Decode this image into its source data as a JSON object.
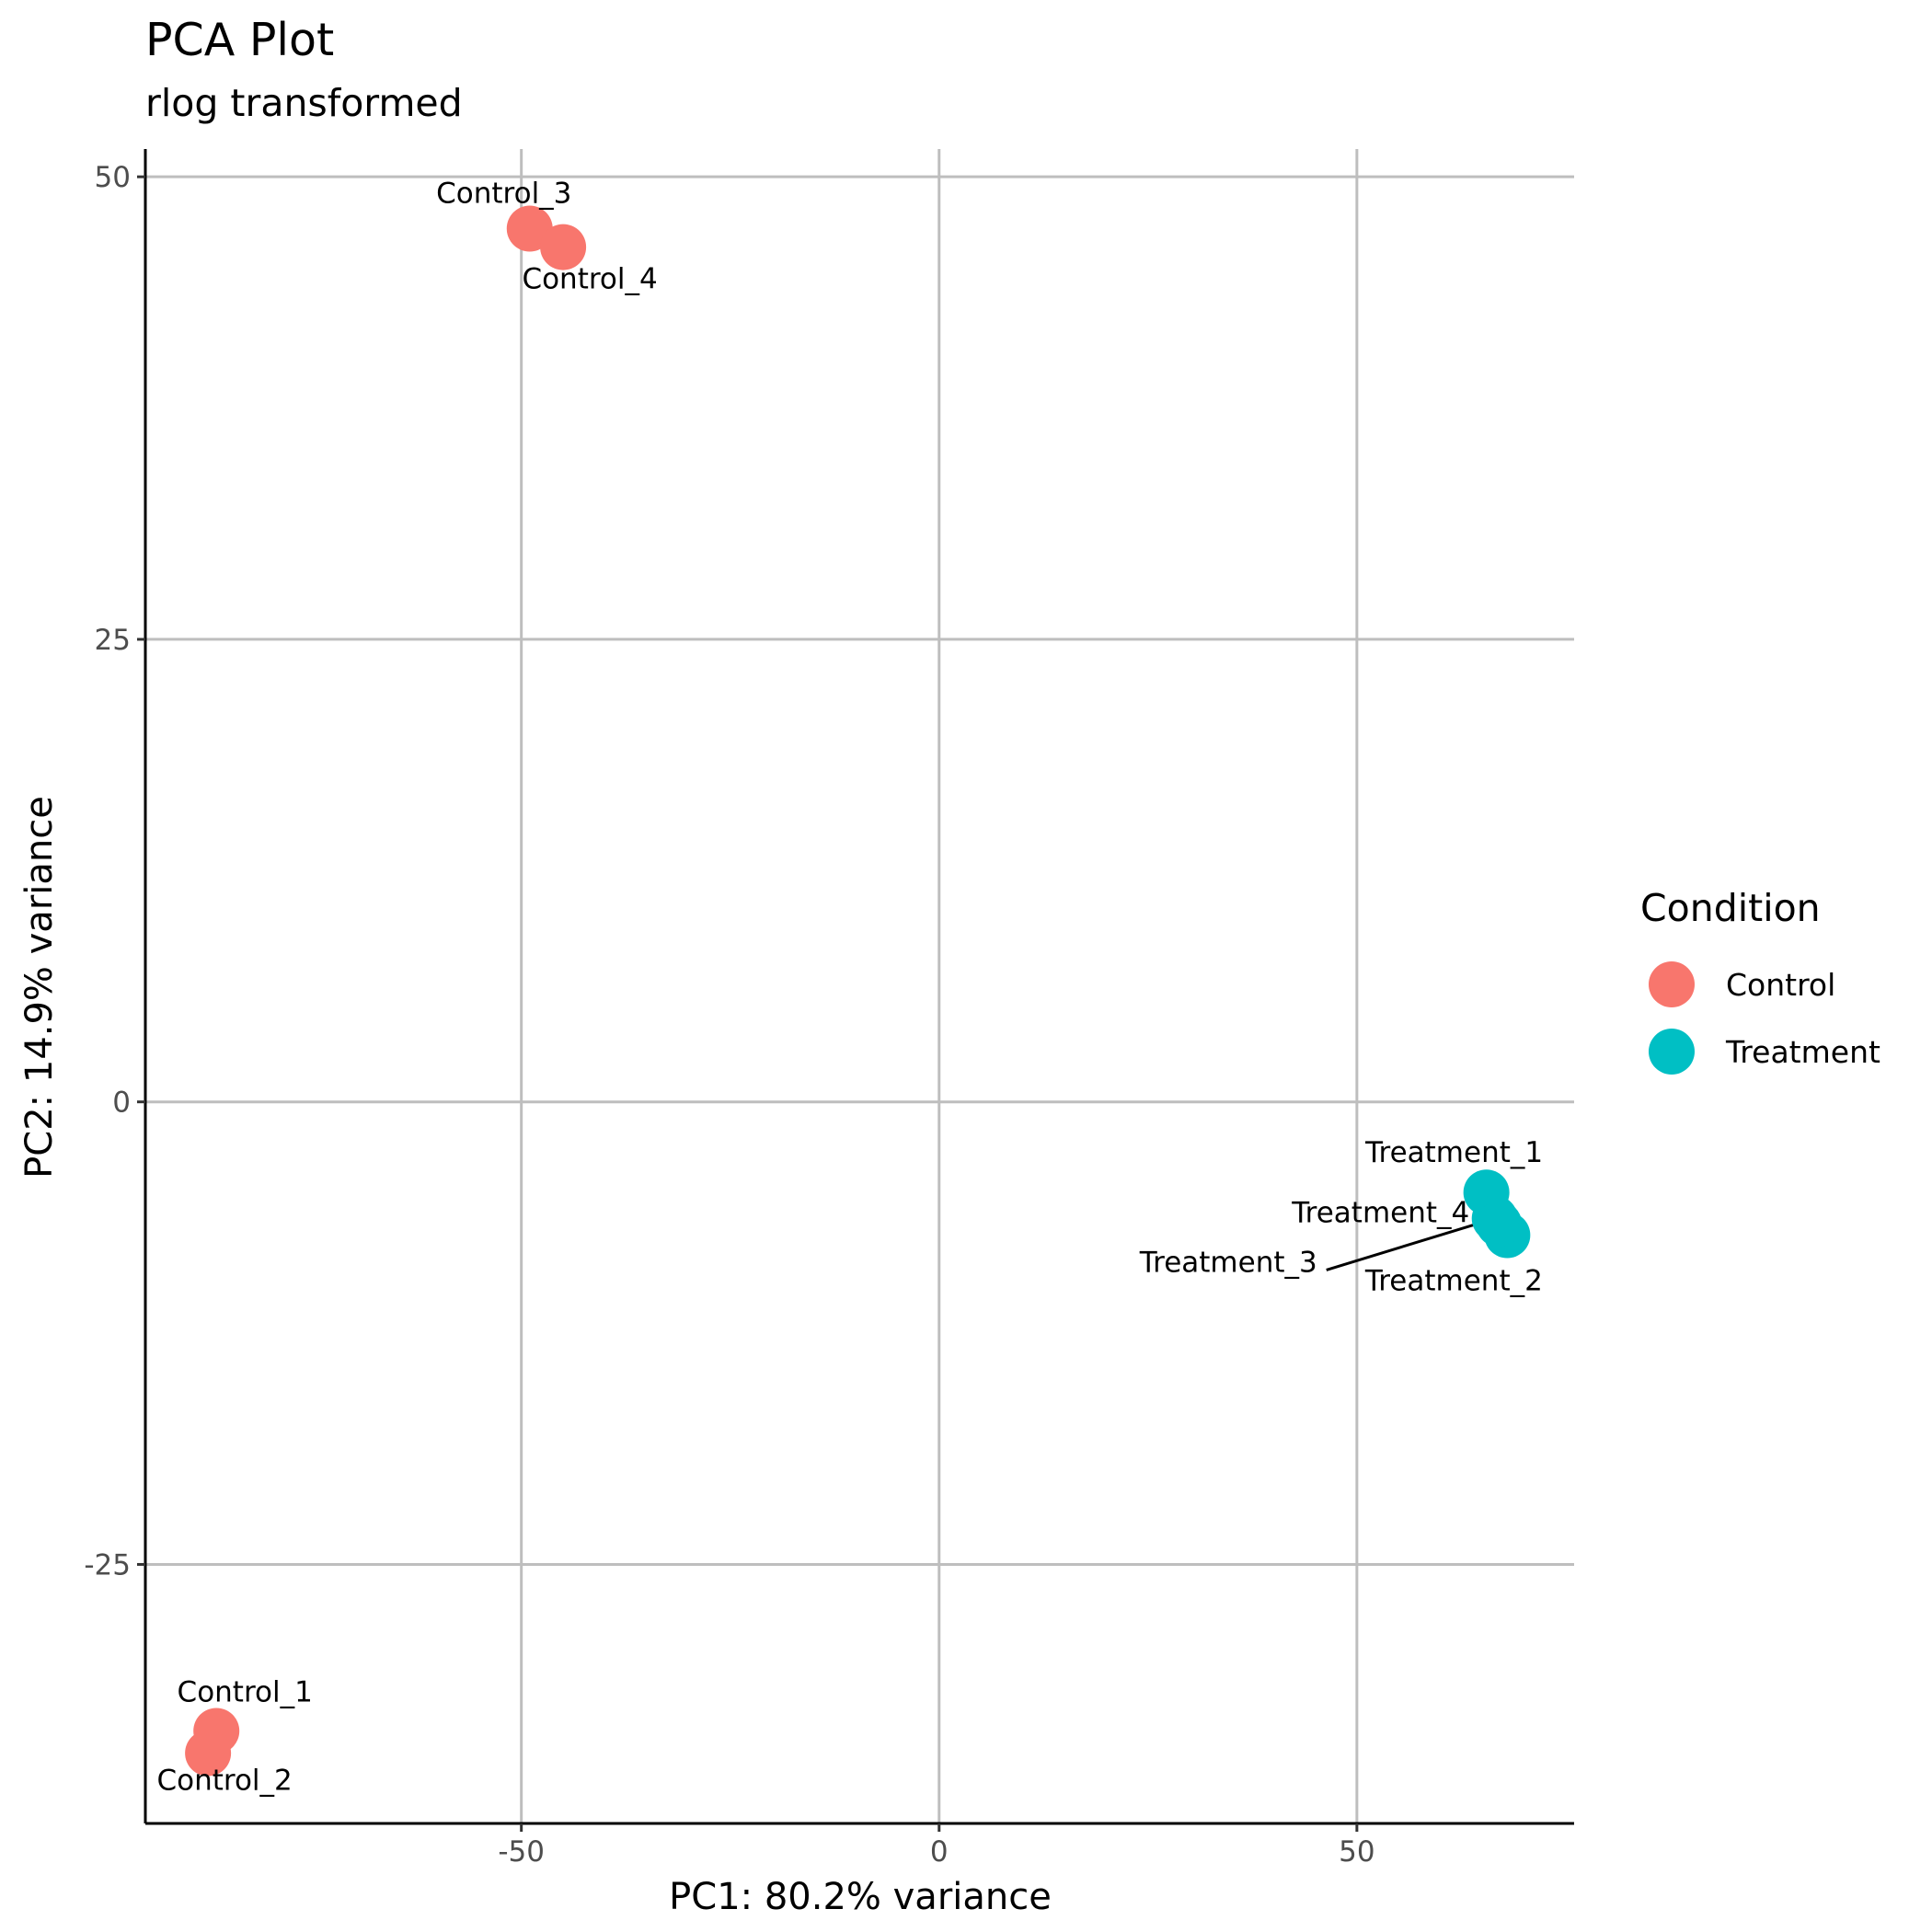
{
  "chart_data": {
    "type": "scatter",
    "title": "PCA Plot",
    "subtitle": "rlog transformed",
    "xlabel": "PC1: 80.2% variance",
    "ylabel": "PC2: 14.9% variance",
    "xlim": [
      -95,
      76
    ],
    "ylim": [
      -39,
      51.5
    ],
    "xticks": [
      -50,
      0,
      50
    ],
    "yticks": [
      -25,
      0,
      25,
      50
    ],
    "grid": true,
    "legend": {
      "title": "Condition",
      "position": "right"
    },
    "series": [
      {
        "name": "Control",
        "color": "#F8766D",
        "points": [
          {
            "label": "Control_1",
            "x": -86.5,
            "y": -34
          },
          {
            "label": "Control_2",
            "x": -87.5,
            "y": -35.2
          },
          {
            "label": "Control_3",
            "x": -49,
            "y": 47.2
          },
          {
            "label": "Control_4",
            "x": -45,
            "y": 46.2
          }
        ]
      },
      {
        "name": "Treatment",
        "color": "#00BFC4",
        "points": [
          {
            "label": "Treatment_1",
            "x": 65.5,
            "y": -4.9
          },
          {
            "label": "Treatment_2",
            "x": 68,
            "y": -7.2
          },
          {
            "label": "Treatment_3",
            "x": 66.5,
            "y": -6.3
          },
          {
            "label": "Treatment_4",
            "x": 67,
            "y": -6.6
          }
        ]
      }
    ]
  }
}
